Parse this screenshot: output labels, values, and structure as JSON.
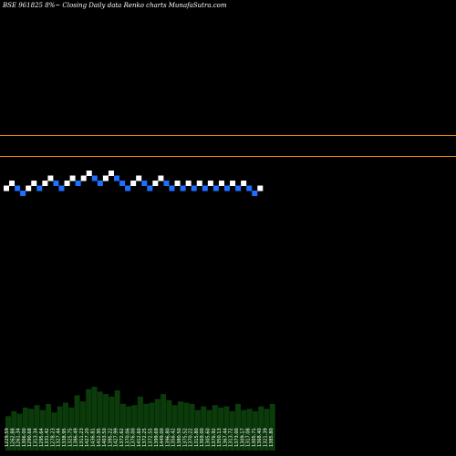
{
  "title": "BSE 961825 8%~  Closing Daily data  Renko  charts MunafaSutra.com",
  "chart_data": {
    "type": "renko",
    "title": "BSE 961825 8%~  Closing Daily data  Renko  charts MunafaSutra.com",
    "price_min": 1650,
    "price_max": 1760,
    "reference_lines": [
      {
        "name": "upper",
        "value": 1742,
        "color": "#ff8c00"
      },
      {
        "name": "lower",
        "value": 1727,
        "color": "#ff8c00"
      }
    ],
    "bricks": [
      {
        "dir": "up",
        "level": 1
      },
      {
        "dir": "up",
        "level": 2
      },
      {
        "dir": "down",
        "level": 1
      },
      {
        "dir": "down",
        "level": 0
      },
      {
        "dir": "up",
        "level": 1
      },
      {
        "dir": "up",
        "level": 2
      },
      {
        "dir": "down",
        "level": 1
      },
      {
        "dir": "up",
        "level": 2
      },
      {
        "dir": "up",
        "level": 3
      },
      {
        "dir": "down",
        "level": 2
      },
      {
        "dir": "down",
        "level": 1
      },
      {
        "dir": "up",
        "level": 2
      },
      {
        "dir": "up",
        "level": 3
      },
      {
        "dir": "down",
        "level": 2
      },
      {
        "dir": "up",
        "level": 3
      },
      {
        "dir": "up",
        "level": 4
      },
      {
        "dir": "down",
        "level": 3
      },
      {
        "dir": "down",
        "level": 2
      },
      {
        "dir": "up",
        "level": 3
      },
      {
        "dir": "up",
        "level": 4
      },
      {
        "dir": "down",
        "level": 3
      },
      {
        "dir": "down",
        "level": 2
      },
      {
        "dir": "down",
        "level": 1
      },
      {
        "dir": "up",
        "level": 2
      },
      {
        "dir": "up",
        "level": 3
      },
      {
        "dir": "down",
        "level": 2
      },
      {
        "dir": "down",
        "level": 1
      },
      {
        "dir": "up",
        "level": 2
      },
      {
        "dir": "up",
        "level": 3
      },
      {
        "dir": "down",
        "level": 2
      },
      {
        "dir": "down",
        "level": 1
      },
      {
        "dir": "up",
        "level": 2
      },
      {
        "dir": "down",
        "level": 1
      },
      {
        "dir": "up",
        "level": 2
      },
      {
        "dir": "down",
        "level": 1
      },
      {
        "dir": "up",
        "level": 2
      },
      {
        "dir": "down",
        "level": 1
      },
      {
        "dir": "up",
        "level": 2
      },
      {
        "dir": "down",
        "level": 1
      },
      {
        "dir": "up",
        "level": 2
      },
      {
        "dir": "down",
        "level": 1
      },
      {
        "dir": "up",
        "level": 2
      },
      {
        "dir": "down",
        "level": 1
      },
      {
        "dir": "up",
        "level": 2
      },
      {
        "dir": "down",
        "level": 1
      },
      {
        "dir": "down",
        "level": 0
      },
      {
        "dir": "up",
        "level": 1
      }
    ],
    "volume_labels": [
      "1229.59",
      "1262.88",
      "1261.34",
      "1306.00",
      "1290.68",
      "1313.34",
      "1295.64",
      "1331.42",
      "1278.23",
      "1327.44",
      "1338.95",
      "1325.75",
      "1386.49",
      "1311.23",
      "1427.20",
      "1436.81",
      "1412.95",
      "1403.50",
      "1395.22",
      "1427.99",
      "1372.62",
      "1370.06",
      "1376.00",
      "1412.60",
      "1372.25",
      "1372.55",
      "1399.69",
      "1449.00",
      "1396.80",
      "1356.42",
      "1380.50",
      "1375.52",
      "1370.22",
      "1315.80",
      "1369.00",
      "1305.60",
      "1376.92",
      "1350.13",
      "1367.44",
      "1313.72",
      "1373.00",
      "1309.17",
      "1317.08",
      "1305.71",
      "1368.40",
      "1321.39",
      "1385.80"
    ],
    "volume_values": [
      28,
      32,
      30,
      35,
      34,
      37,
      33,
      38,
      31,
      36,
      39,
      35,
      45,
      40,
      50,
      52,
      48,
      46,
      44,
      49,
      38,
      36,
      37,
      44,
      38,
      39,
      42,
      46,
      41,
      37,
      40,
      39,
      38,
      33,
      36,
      33,
      37,
      35,
      36,
      32,
      38,
      33,
      34,
      32,
      36,
      34,
      38
    ]
  }
}
